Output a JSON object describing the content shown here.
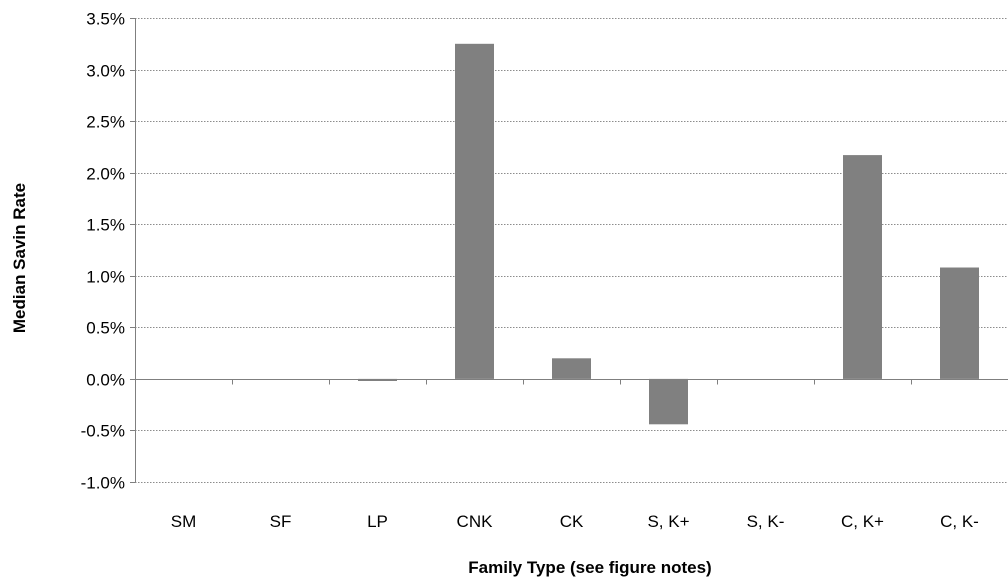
{
  "chart_data": {
    "type": "bar",
    "title": "",
    "xlabel": "Family Type (see figure notes)",
    "ylabel": "Median Savin Rate",
    "categories": [
      "SM",
      "SF",
      "LP",
      "CNK",
      "CK",
      "S, K+",
      "S, K-",
      "C, K+",
      "C, K-"
    ],
    "values": [
      0.0,
      0.0,
      -0.02,
      3.25,
      0.2,
      -0.44,
      0.0,
      2.17,
      1.08
    ],
    "value_unit": "percent",
    "ylim": [
      -1.0,
      3.5
    ],
    "yticks": [
      -1.0,
      -0.5,
      0.0,
      0.5,
      1.0,
      1.5,
      2.0,
      2.5,
      3.0,
      3.5
    ],
    "ytick_labels": [
      "-1.0%",
      "-0.5%",
      "0.0%",
      "0.5%",
      "1.0%",
      "1.5%",
      "2.0%",
      "2.5%",
      "3.0%",
      "3.5%"
    ],
    "grid": true,
    "legend": "none",
    "bar_color": "#808080",
    "grid_color": "#8c8c8c",
    "axis_color": "#7f7f7f"
  }
}
